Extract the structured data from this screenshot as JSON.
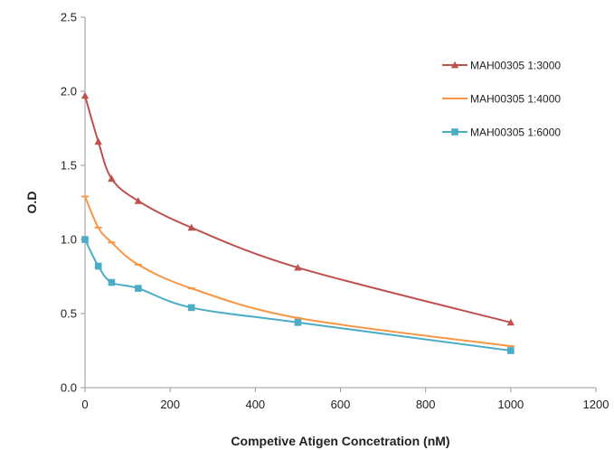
{
  "chart_data": {
    "type": "line",
    "title": "",
    "xlabel": "Competive Atigen Concetration (nM)",
    "ylabel": "O.D",
    "xlim": [
      0,
      1200
    ],
    "ylim": [
      0,
      2.5
    ],
    "xticks": [
      0,
      200,
      400,
      600,
      800,
      1000,
      1200
    ],
    "yticks": [
      0.0,
      0.5,
      1.0,
      1.5,
      2.0,
      2.5
    ],
    "x_tick_labels": [
      "0",
      "200",
      "400",
      "600",
      "800",
      "1000",
      "1200"
    ],
    "y_tick_labels": [
      "0.0",
      "0.5",
      "1.0",
      "1.5",
      "2.0",
      "2.5"
    ],
    "grid": false,
    "smooth": true,
    "legend_position": "top-right",
    "x": [
      0,
      31.25,
      62.5,
      125,
      250,
      500,
      1000
    ],
    "series": [
      {
        "name": "MAH00305 1:3000",
        "color": "#c0504d",
        "marker": "triangle",
        "values": [
          1.97,
          1.66,
          1.41,
          1.26,
          1.08,
          0.81,
          0.44
        ]
      },
      {
        "name": "MAH00305 1:4000",
        "color": "#f79646",
        "marker": "dash",
        "values": [
          1.29,
          1.08,
          0.98,
          0.83,
          0.67,
          0.47,
          0.28
        ]
      },
      {
        "name": "MAH00305 1:6000",
        "color": "#4bacc6",
        "marker": "square",
        "values": [
          1.0,
          0.82,
          0.71,
          0.67,
          0.54,
          0.44,
          0.25
        ]
      }
    ]
  }
}
